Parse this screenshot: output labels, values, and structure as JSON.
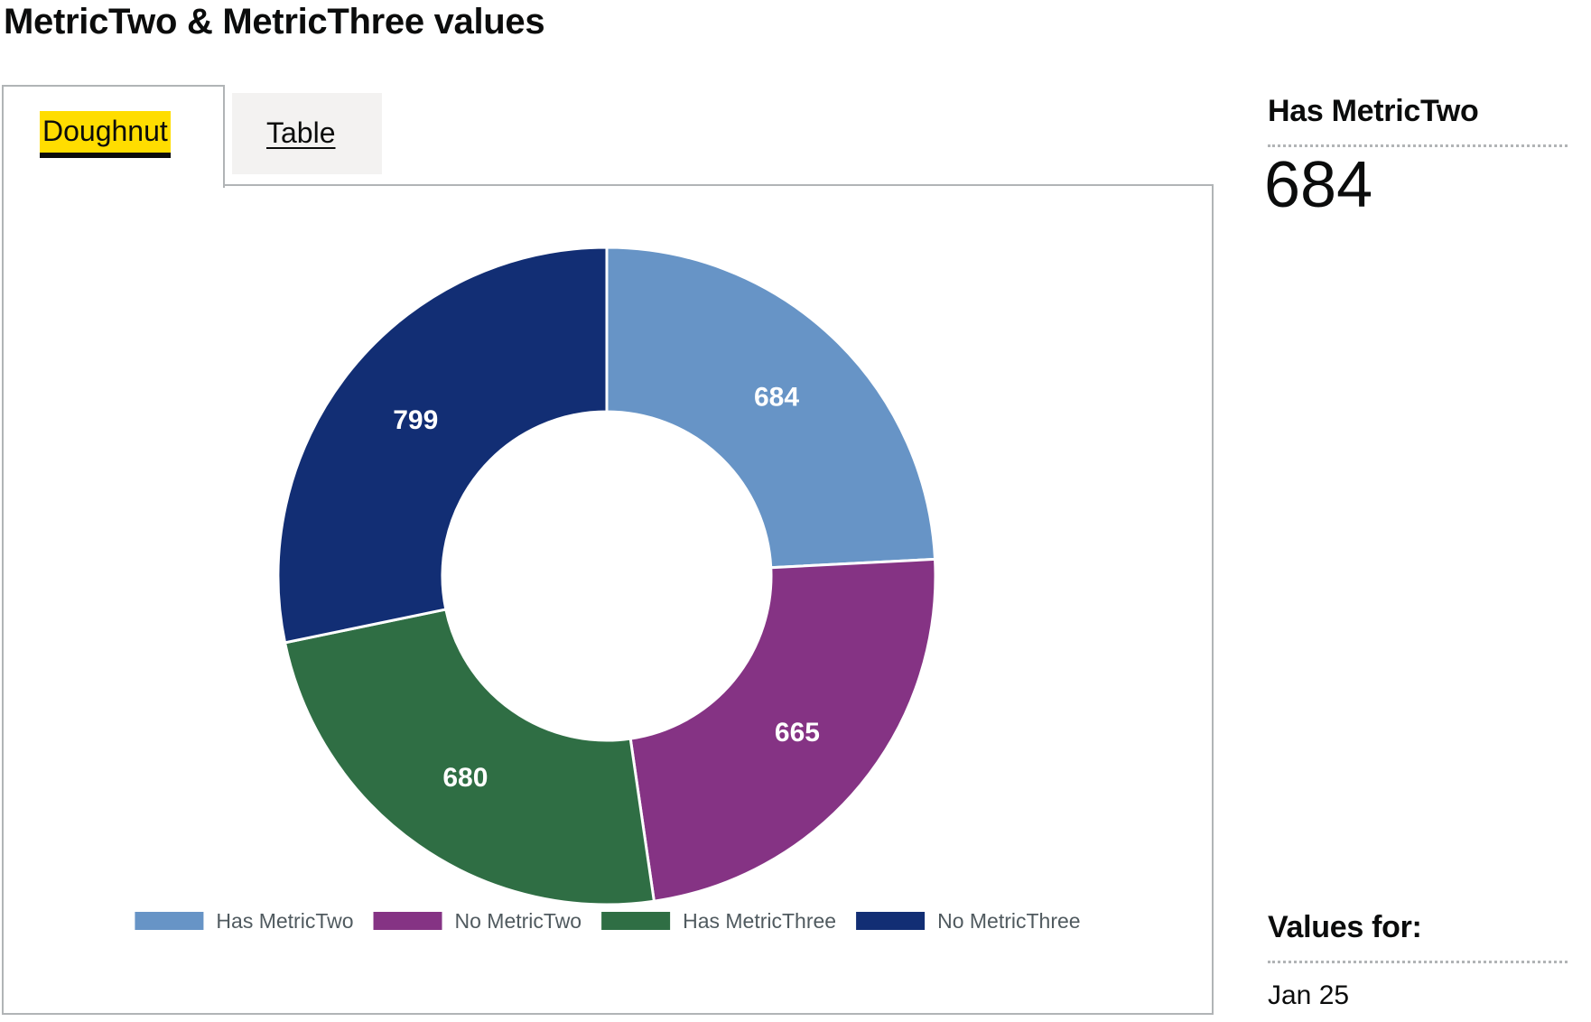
{
  "title": "MetricTwo & MetricThree values",
  "tabs": [
    {
      "label": "Doughnut",
      "selected": true
    },
    {
      "label": "Table",
      "selected": false
    }
  ],
  "summary": {
    "heading": "Has MetricTwo",
    "value": "684",
    "period_heading": "Values for:",
    "period_value": "Jan 25"
  },
  "colors": {
    "focus_yellow": "#ffdd00",
    "border": "#b1b4b6",
    "tab_inactive_bg": "#f3f2f1"
  },
  "chart_data": {
    "type": "pie",
    "variant": "doughnut",
    "categories": [
      "Has MetricTwo",
      "No MetricTwo",
      "Has MetricThree",
      "No MetricThree"
    ],
    "values": [
      684,
      665,
      680,
      799
    ],
    "colors": [
      "#6794c6",
      "#853384",
      "#2f6e44",
      "#122e74"
    ],
    "data_labels": [
      "684",
      "665",
      "680",
      "799"
    ],
    "legend_position": "bottom",
    "start_angle": "top",
    "direction": "clockwise"
  }
}
